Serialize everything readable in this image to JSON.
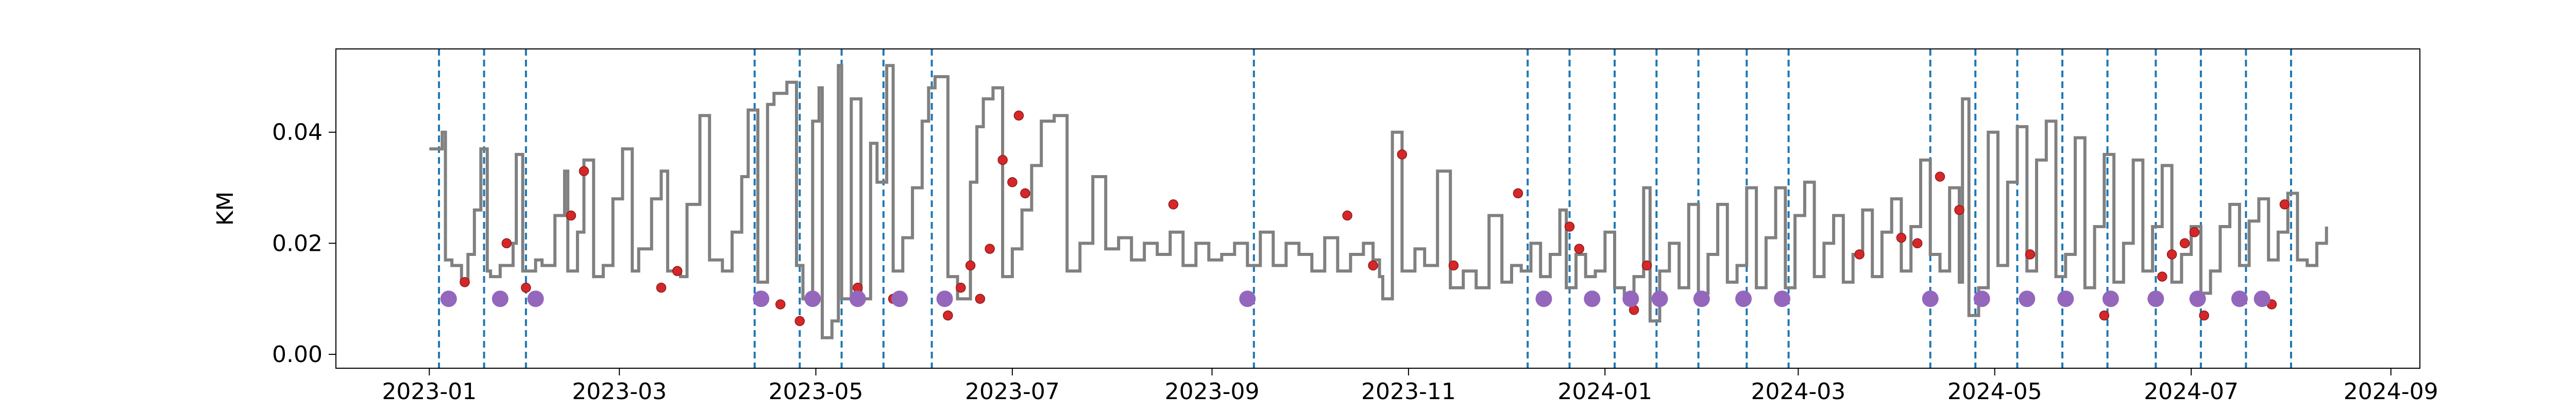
{
  "chart_data": {
    "type": "line",
    "title": "",
    "xlabel": "",
    "ylabel": "KM",
    "xlim": [
      "2022-12-03",
      "2024-09-10"
    ],
    "ylim": [
      -0.0025,
      0.055
    ],
    "x_ticks": [
      "2023-01",
      "2023-03",
      "2023-05",
      "2023-07",
      "2023-09",
      "2023-11",
      "2024-01",
      "2024-03",
      "2024-05",
      "2024-07",
      "2024-09"
    ],
    "x_tick_dates": [
      "2023-01-01",
      "2023-03-01",
      "2023-05-01",
      "2023-07-01",
      "2023-09-01",
      "2023-11-01",
      "2024-01-01",
      "2024-03-01",
      "2024-05-01",
      "2024-07-01",
      "2024-09-01"
    ],
    "y_ticks": [
      0.0,
      0.02,
      0.04
    ],
    "y_tick_labels": [
      "0.00",
      "0.02",
      "0.04"
    ],
    "grid": false,
    "colors": {
      "line": "#808080",
      "red_points": "#d62728",
      "purple_points": "#9467bd",
      "vlines": "#1f77b4"
    },
    "series": [
      {
        "kind": "line",
        "x": [
          "2023-01-01",
          "2023-01-05",
          "2023-01-06",
          "2023-01-08",
          "2023-01-11",
          "2023-01-13",
          "2023-01-15",
          "2023-01-17",
          "2023-01-19",
          "2023-01-20",
          "2023-01-23",
          "2023-01-27",
          "2023-01-28",
          "2023-01-30",
          "2023-02-03",
          "2023-02-05",
          "2023-02-09",
          "2023-02-12",
          "2023-02-13",
          "2023-02-16",
          "2023-02-18",
          "2023-02-21",
          "2023-02-24",
          "2023-02-27",
          "2023-03-02",
          "2023-03-05",
          "2023-03-07",
          "2023-03-11",
          "2023-03-14",
          "2023-03-16",
          "2023-03-20",
          "2023-03-22",
          "2023-03-26",
          "2023-03-29",
          "2023-04-02",
          "2023-04-05",
          "2023-04-08",
          "2023-04-10",
          "2023-04-13",
          "2023-04-16",
          "2023-04-18",
          "2023-04-22",
          "2023-04-25",
          "2023-04-27",
          "2023-04-30",
          "2023-05-02",
          "2023-05-03",
          "2023-05-06",
          "2023-05-08",
          "2023-05-09",
          "2023-05-12",
          "2023-05-15",
          "2023-05-18",
          "2023-05-20",
          "2023-05-23",
          "2023-05-25",
          "2023-05-28",
          "2023-05-31",
          "2023-06-03",
          "2023-06-05",
          "2023-06-07",
          "2023-06-11",
          "2023-06-14",
          "2023-06-18",
          "2023-06-20",
          "2023-06-22",
          "2023-06-25",
          "2023-06-28",
          "2023-07-01",
          "2023-07-04",
          "2023-07-07",
          "2023-07-10",
          "2023-07-14",
          "2023-07-18",
          "2023-07-22",
          "2023-07-26",
          "2023-07-30",
          "2023-08-03",
          "2023-08-07",
          "2023-08-11",
          "2023-08-15",
          "2023-08-19",
          "2023-08-23",
          "2023-08-27",
          "2023-08-31",
          "2023-09-04",
          "2023-09-08",
          "2023-09-12",
          "2023-09-16",
          "2023-09-20",
          "2023-09-24",
          "2023-09-28",
          "2023-10-02",
          "2023-10-06",
          "2023-10-10",
          "2023-10-14",
          "2023-10-18",
          "2023-10-21",
          "2023-10-23",
          "2023-10-24",
          "2023-10-27",
          "2023-10-30",
          "2023-11-03",
          "2023-11-06",
          "2023-11-10",
          "2023-11-14",
          "2023-11-18",
          "2023-11-22",
          "2023-11-26",
          "2023-11-30",
          "2023-12-03",
          "2023-12-06",
          "2023-12-09",
          "2023-12-12",
          "2023-12-15",
          "2023-12-18",
          "2023-12-20",
          "2023-12-23",
          "2023-12-26",
          "2023-12-29",
          "2024-01-01",
          "2024-01-04",
          "2024-01-07",
          "2024-01-10",
          "2024-01-13",
          "2024-01-15",
          "2024-01-18",
          "2024-01-21",
          "2024-01-24",
          "2024-01-27",
          "2024-01-30",
          "2024-02-02",
          "2024-02-05",
          "2024-02-08",
          "2024-02-11",
          "2024-02-14",
          "2024-02-17",
          "2024-02-20",
          "2024-02-23",
          "2024-02-26",
          "2024-02-29",
          "2024-03-03",
          "2024-03-06",
          "2024-03-09",
          "2024-03-12",
          "2024-03-15",
          "2024-03-18",
          "2024-03-21",
          "2024-03-24",
          "2024-03-27",
          "2024-03-30",
          "2024-04-02",
          "2024-04-05",
          "2024-04-08",
          "2024-04-11",
          "2024-04-14",
          "2024-04-17",
          "2024-04-20",
          "2024-04-21",
          "2024-04-23",
          "2024-04-26",
          "2024-04-29",
          "2024-05-02",
          "2024-05-05",
          "2024-05-08",
          "2024-05-11",
          "2024-05-14",
          "2024-05-17",
          "2024-05-20",
          "2024-05-23",
          "2024-05-26",
          "2024-05-29",
          "2024-06-01",
          "2024-06-04",
          "2024-06-07",
          "2024-06-10",
          "2024-06-13",
          "2024-06-16",
          "2024-06-19",
          "2024-06-22",
          "2024-06-25",
          "2024-06-28",
          "2024-07-01",
          "2024-07-04",
          "2024-07-07",
          "2024-07-10",
          "2024-07-13",
          "2024-07-16",
          "2024-07-19",
          "2024-07-22",
          "2024-07-25",
          "2024-07-28",
          "2024-07-31",
          "2024-08-03",
          "2024-08-06",
          "2024-08-09",
          "2024-08-12"
        ],
        "y": [
          0.037,
          0.04,
          0.017,
          0.016,
          0.013,
          0.018,
          0.026,
          0.037,
          0.015,
          0.014,
          0.016,
          0.02,
          0.036,
          0.015,
          0.017,
          0.016,
          0.025,
          0.033,
          0.015,
          0.022,
          0.035,
          0.014,
          0.016,
          0.028,
          0.037,
          0.015,
          0.019,
          0.028,
          0.033,
          0.015,
          0.014,
          0.027,
          0.043,
          0.017,
          0.015,
          0.022,
          0.032,
          0.044,
          0.013,
          0.045,
          0.047,
          0.049,
          0.016,
          0.01,
          0.042,
          0.048,
          0.003,
          0.006,
          0.052,
          0.01,
          0.046,
          0.01,
          0.038,
          0.031,
          0.052,
          0.015,
          0.021,
          0.03,
          0.042,
          0.048,
          0.05,
          0.014,
          0.01,
          0.031,
          0.041,
          0.046,
          0.048,
          0.014,
          0.019,
          0.026,
          0.034,
          0.042,
          0.043,
          0.015,
          0.02,
          0.032,
          0.019,
          0.021,
          0.017,
          0.02,
          0.018,
          0.022,
          0.016,
          0.02,
          0.017,
          0.018,
          0.02,
          0.016,
          0.022,
          0.016,
          0.02,
          0.018,
          0.015,
          0.021,
          0.015,
          0.018,
          0.02,
          0.017,
          0.014,
          0.01,
          0.04,
          0.015,
          0.019,
          0.016,
          0.033,
          0.012,
          0.015,
          0.012,
          0.025,
          0.013,
          0.016,
          0.015,
          0.02,
          0.014,
          0.018,
          0.026,
          0.012,
          0.018,
          0.014,
          0.015,
          0.022,
          0.012,
          0.01,
          0.014,
          0.03,
          0.006,
          0.015,
          0.02,
          0.012,
          0.027,
          0.011,
          0.018,
          0.027,
          0.013,
          0.016,
          0.03,
          0.012,
          0.021,
          0.03,
          0.012,
          0.025,
          0.031,
          0.014,
          0.02,
          0.025,
          0.013,
          0.018,
          0.026,
          0.014,
          0.022,
          0.028,
          0.015,
          0.023,
          0.035,
          0.018,
          0.015,
          0.03,
          0.013,
          0.046,
          0.007,
          0.012,
          0.04,
          0.016,
          0.031,
          0.041,
          0.015,
          0.035,
          0.042,
          0.014,
          0.018,
          0.039,
          0.012,
          0.023,
          0.036,
          0.013,
          0.02,
          0.035,
          0.015,
          0.023,
          0.034,
          0.013,
          0.018,
          0.023,
          0.011,
          0.015,
          0.023,
          0.027,
          0.016,
          0.024,
          0.028,
          0.017,
          0.022,
          0.029,
          0.017,
          0.016,
          0.02,
          0.023
        ]
      },
      {
        "kind": "scatter",
        "name": "red",
        "x": [
          "2023-01-12",
          "2023-01-25",
          "2023-01-31",
          "2023-02-14",
          "2023-02-18",
          "2023-03-14",
          "2023-03-19",
          "2023-04-20",
          "2023-04-26",
          "2023-05-14",
          "2023-05-25",
          "2023-06-11",
          "2023-06-15",
          "2023-06-18",
          "2023-06-21",
          "2023-06-24",
          "2023-06-28",
          "2023-07-01",
          "2023-07-03",
          "2023-07-05",
          "2023-08-20",
          "2023-10-13",
          "2023-10-21",
          "2023-10-30",
          "2023-11-15",
          "2023-12-05",
          "2023-12-21",
          "2023-12-24",
          "2024-01-10",
          "2024-01-14",
          "2024-03-20",
          "2024-04-02",
          "2024-04-07",
          "2024-04-14",
          "2024-04-20",
          "2024-05-12",
          "2024-06-04",
          "2024-06-19",
          "2024-06-22",
          "2024-06-25",
          "2024-06-29",
          "2024-07-02",
          "2024-07-05",
          "2024-07-26",
          "2024-07-30"
        ],
        "y": [
          0.013,
          0.02,
          0.012,
          0.025,
          0.033,
          0.012,
          0.015,
          0.009,
          0.006,
          0.012,
          0.01,
          0.007,
          0.012,
          0.016,
          0.01,
          0.019,
          0.035,
          0.031,
          0.043,
          0.029,
          0.027,
          0.025,
          0.016,
          0.036,
          0.016,
          0.029,
          0.023,
          0.019,
          0.008,
          0.016,
          0.018,
          0.021,
          0.02,
          0.032,
          0.026,
          0.018,
          0.007,
          0.01,
          0.014,
          0.018,
          0.02,
          0.022,
          0.007,
          0.009,
          0.027
        ]
      },
      {
        "kind": "scatter",
        "name": "purple",
        "x": [
          "2023-01-07",
          "2023-01-23",
          "2023-02-03",
          "2023-04-14",
          "2023-04-30",
          "2023-05-14",
          "2023-05-27",
          "2023-06-10",
          "2023-09-12",
          "2023-12-13",
          "2023-12-28",
          "2024-01-09",
          "2024-01-18",
          "2024-01-31",
          "2024-02-13",
          "2024-02-25",
          "2024-04-11",
          "2024-04-27",
          "2024-05-11",
          "2024-05-23",
          "2024-06-06",
          "2024-06-20",
          "2024-07-03",
          "2024-07-16",
          "2024-07-23"
        ],
        "y": [
          0.01,
          0.01,
          0.01,
          0.01,
          0.01,
          0.01,
          0.01,
          0.01,
          0.01,
          0.01,
          0.01,
          0.01,
          0.01,
          0.01,
          0.01,
          0.01,
          0.01,
          0.01,
          0.01,
          0.01,
          0.01,
          0.01,
          0.01,
          0.01,
          0.01
        ]
      }
    ],
    "vlines": [
      "2023-01-04",
      "2023-01-18",
      "2023-01-31",
      "2023-04-12",
      "2023-04-26",
      "2023-05-09",
      "2023-05-22",
      "2023-06-06",
      "2023-09-14",
      "2023-12-08",
      "2023-12-21",
      "2024-01-04",
      "2024-01-17",
      "2024-01-30",
      "2024-02-14",
      "2024-02-27",
      "2024-04-11",
      "2024-04-25",
      "2024-05-08",
      "2024-05-22",
      "2024-06-05",
      "2024-06-20",
      "2024-07-04",
      "2024-07-18",
      "2024-08-01"
    ]
  }
}
